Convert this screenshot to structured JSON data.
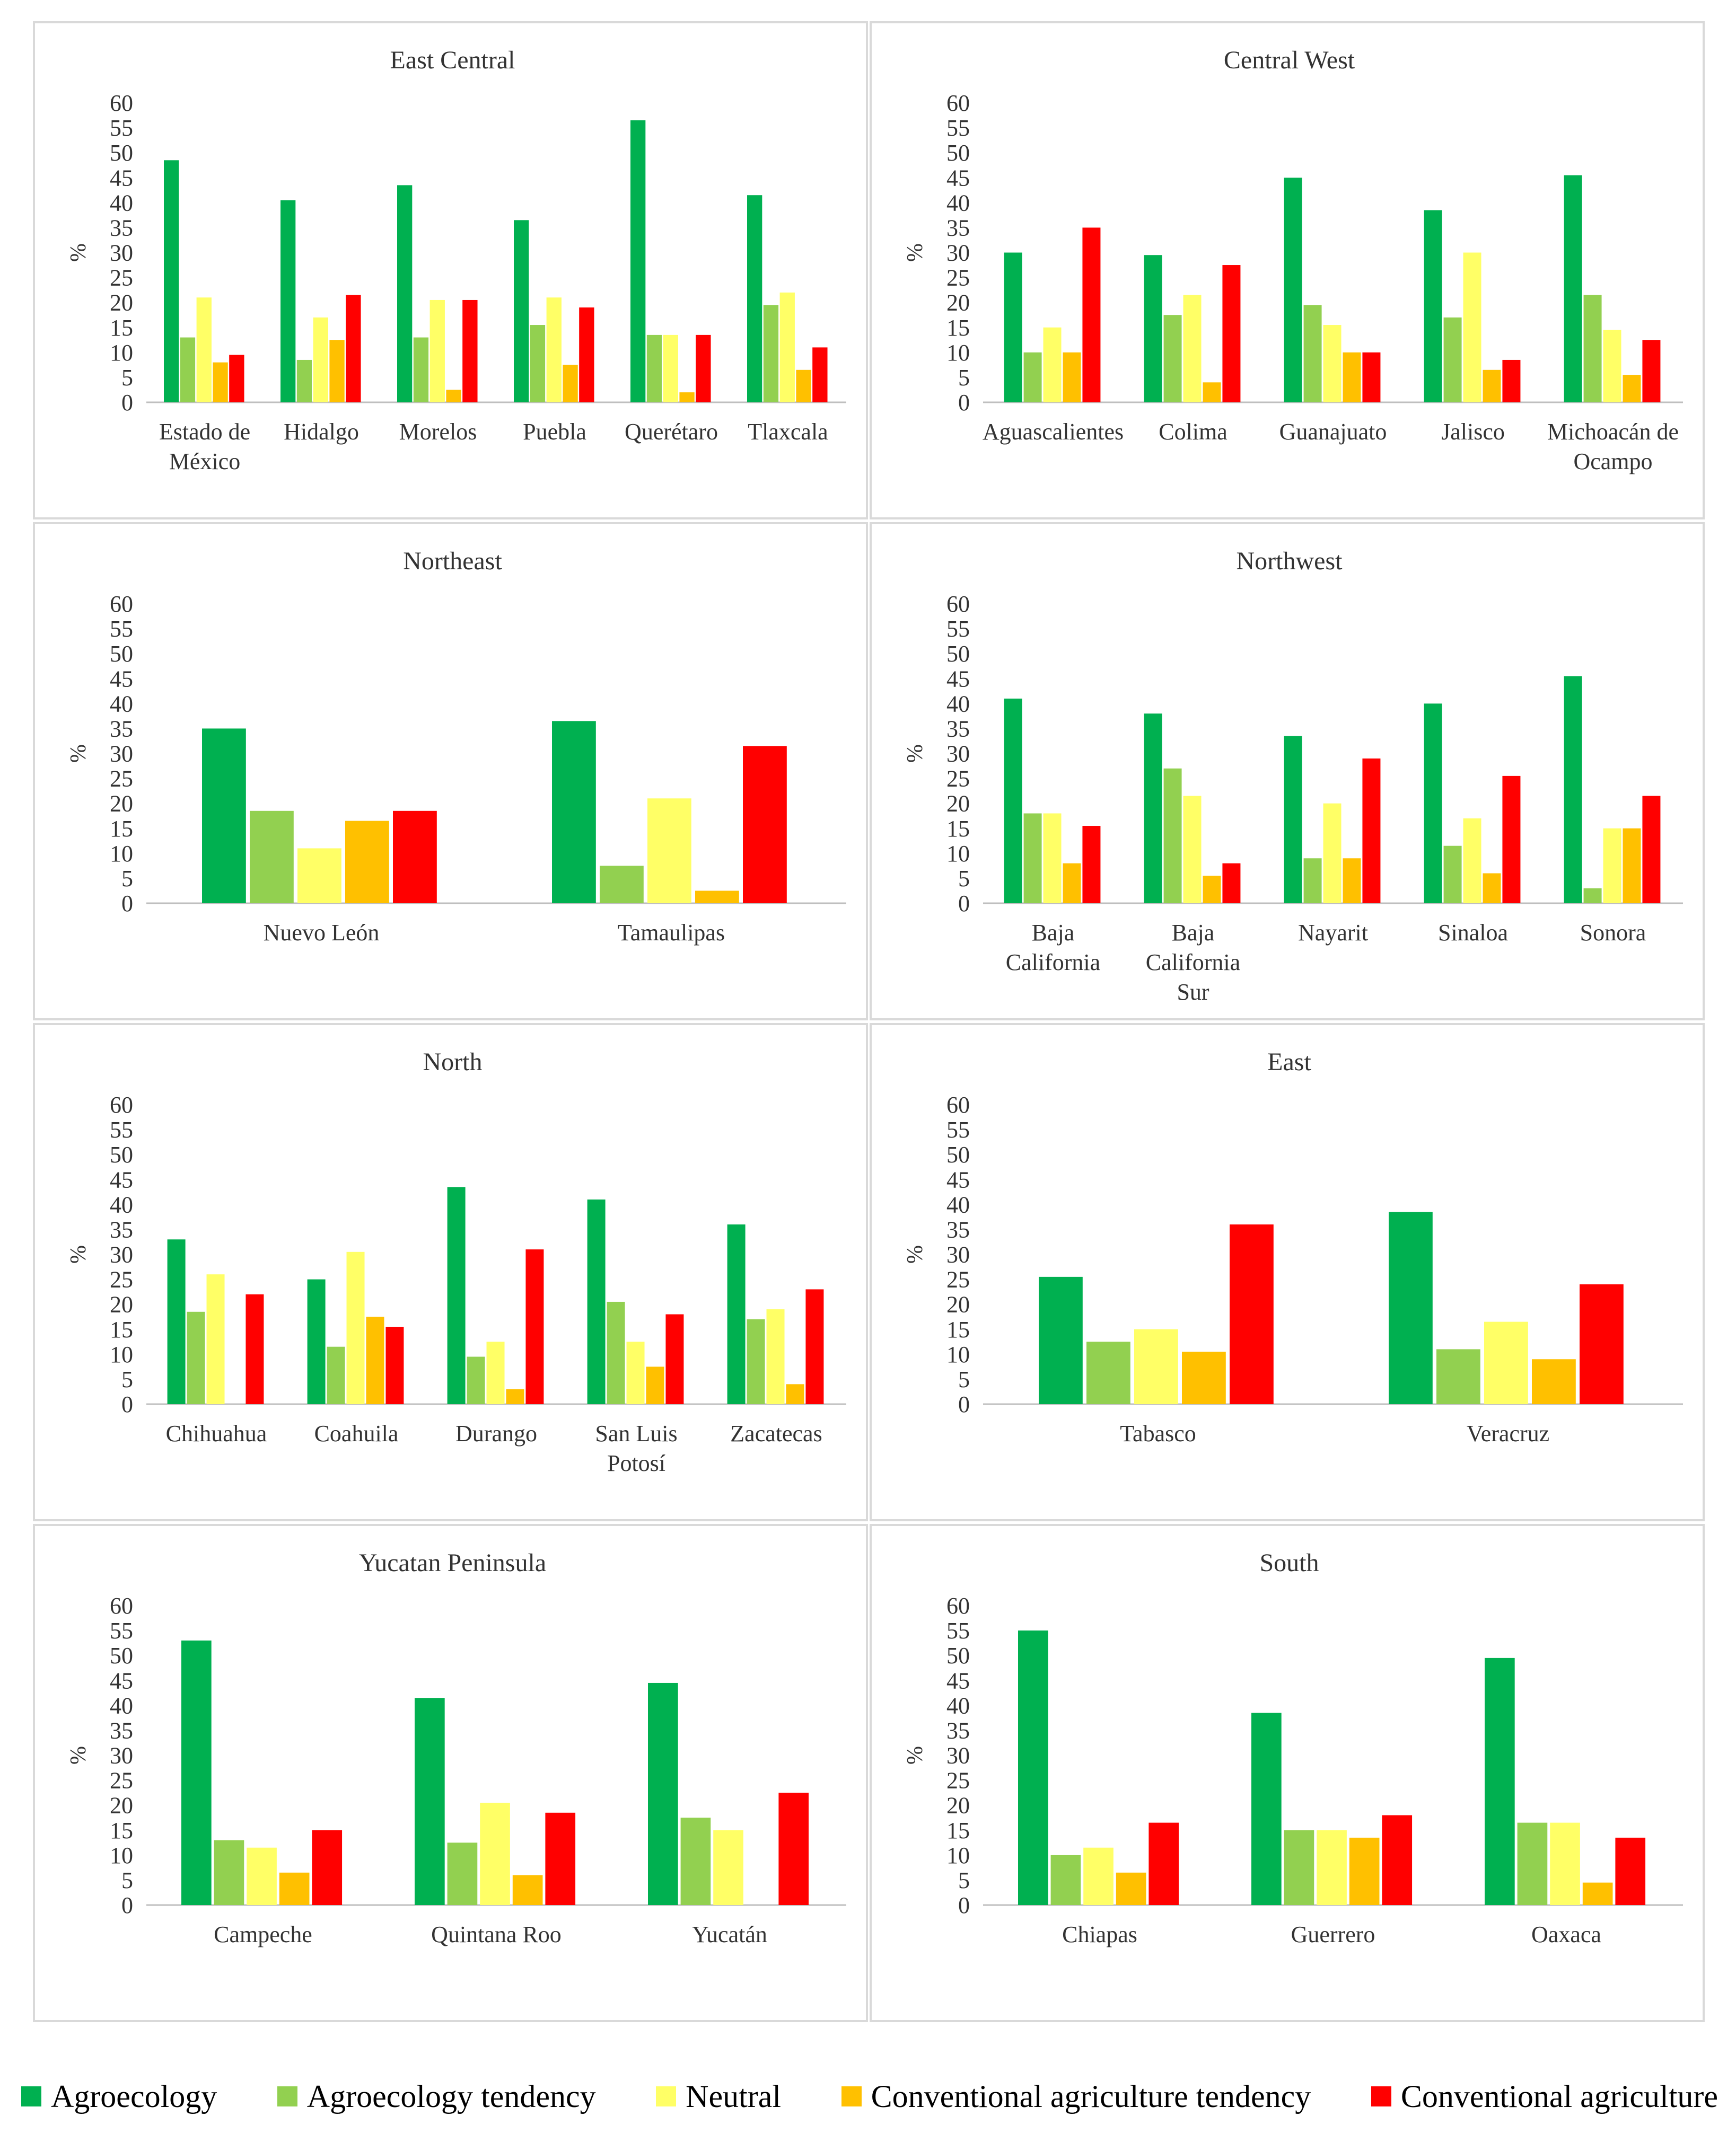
{
  "legend": [
    {
      "label": "Agroecology",
      "color": "#00b050"
    },
    {
      "label": "Agroecology tendency",
      "color": "#92d050"
    },
    {
      "label": "Neutral",
      "color": "#ffff66"
    },
    {
      "label": "Conventional agriculture tendency",
      "color": "#ffc000"
    },
    {
      "label": "Conventional agriculture",
      "color": "#ff0000"
    }
  ],
  "chart_data": [
    {
      "type": "bar",
      "title": "East Central",
      "ylabel": "%",
      "ylim": [
        0,
        60
      ],
      "yticks": [
        "60",
        "55",
        "50",
        "45",
        "40",
        "35",
        "30",
        "25",
        "20",
        "15",
        "10",
        "5",
        "0"
      ],
      "categories": [
        "Estado de México",
        "Hidalgo",
        "Morelos",
        "Puebla",
        "Querétaro",
        "Tlaxcala"
      ],
      "category_lines": [
        [
          "Estado de",
          "México"
        ],
        [
          "Hidalgo"
        ],
        [
          "Morelos"
        ],
        [
          "Puebla"
        ],
        [
          "Querétaro"
        ],
        [
          "Tlaxcala"
        ]
      ],
      "series": [
        {
          "name": "Agroecology",
          "values": [
            48.5,
            40.5,
            43.5,
            36.5,
            56.5,
            41.5
          ]
        },
        {
          "name": "Agroecology tendency",
          "values": [
            13,
            8.5,
            13,
            15.5,
            13.5,
            19.5
          ]
        },
        {
          "name": "Neutral",
          "values": [
            21,
            17,
            20.5,
            21,
            13.5,
            22
          ]
        },
        {
          "name": "Conventional agriculture tendency",
          "values": [
            8,
            12.5,
            2.5,
            7.5,
            2,
            6.5
          ]
        },
        {
          "name": "Conventional agriculture",
          "values": [
            9.5,
            21.5,
            20.5,
            19,
            13.5,
            11
          ]
        }
      ]
    },
    {
      "type": "bar",
      "title": "Central West",
      "ylabel": "%",
      "ylim": [
        0,
        60
      ],
      "yticks": [
        "60",
        "55",
        "50",
        "45",
        "40",
        "35",
        "30",
        "25",
        "20",
        "15",
        "10",
        "5",
        "0"
      ],
      "categories": [
        "Aguascalientes",
        "Colima",
        "Guanajuato",
        "Jalisco",
        "Michoacán de Ocampo"
      ],
      "category_lines": [
        [
          "Aguascalientes"
        ],
        [
          "Colima"
        ],
        [
          "Guanajuato"
        ],
        [
          "Jalisco"
        ],
        [
          "Michoacán de",
          "Ocampo"
        ]
      ],
      "series": [
        {
          "name": "Agroecology",
          "values": [
            30,
            29.5,
            45,
            38.5,
            45.5
          ]
        },
        {
          "name": "Agroecology tendency",
          "values": [
            10,
            17.5,
            19.5,
            17,
            21.5
          ]
        },
        {
          "name": "Neutral",
          "values": [
            15,
            21.5,
            15.5,
            30,
            14.5
          ]
        },
        {
          "name": "Conventional agriculture tendency",
          "values": [
            10,
            4,
            10,
            6.5,
            5.5
          ]
        },
        {
          "name": "Conventional agriculture",
          "values": [
            35,
            27.5,
            10,
            8.5,
            12.5
          ]
        }
      ]
    },
    {
      "type": "bar",
      "title": "Northeast",
      "ylabel": "%",
      "ylim": [
        0,
        60
      ],
      "yticks": [
        "60",
        "55",
        "50",
        "45",
        "40",
        "35",
        "30",
        "25",
        "20",
        "15",
        "10",
        "5",
        "0"
      ],
      "categories": [
        "Nuevo León",
        "Tamaulipas"
      ],
      "category_lines": [
        [
          "Nuevo León"
        ],
        [
          "Tamaulipas"
        ]
      ],
      "series": [
        {
          "name": "Agroecology",
          "values": [
            35,
            36.5
          ]
        },
        {
          "name": "Agroecology tendency",
          "values": [
            18.5,
            7.5
          ]
        },
        {
          "name": "Neutral",
          "values": [
            11,
            21
          ]
        },
        {
          "name": "Conventional agriculture tendency",
          "values": [
            16.5,
            2.5
          ]
        },
        {
          "name": "Conventional agriculture",
          "values": [
            18.5,
            31.5
          ]
        }
      ]
    },
    {
      "type": "bar",
      "title": "Northwest",
      "ylabel": "%",
      "ylim": [
        0,
        60
      ],
      "yticks": [
        "60",
        "55",
        "50",
        "45",
        "40",
        "35",
        "30",
        "25",
        "20",
        "15",
        "10",
        "5",
        "0"
      ],
      "categories": [
        "Baja California",
        "Baja California Sur",
        "Nayarit",
        "Sinaloa",
        "Sonora"
      ],
      "category_lines": [
        [
          "Baja",
          "California"
        ],
        [
          "Baja",
          "California",
          "Sur"
        ],
        [
          "Nayarit"
        ],
        [
          "Sinaloa"
        ],
        [
          "Sonora"
        ]
      ],
      "series": [
        {
          "name": "Agroecology",
          "values": [
            41,
            38,
            33.5,
            40,
            45.5
          ]
        },
        {
          "name": "Agroecology tendency",
          "values": [
            18,
            27,
            9,
            11.5,
            3
          ]
        },
        {
          "name": "Neutral",
          "values": [
            18,
            21.5,
            20,
            17,
            15
          ]
        },
        {
          "name": "Conventional agriculture tendency",
          "values": [
            8,
            5.5,
            9,
            6,
            15
          ]
        },
        {
          "name": "Conventional agriculture",
          "values": [
            15.5,
            8,
            29,
            25.5,
            21.5
          ]
        }
      ]
    },
    {
      "type": "bar",
      "title": "North",
      "ylabel": "%",
      "ylim": [
        0,
        60
      ],
      "yticks": [
        "60",
        "55",
        "50",
        "45",
        "40",
        "35",
        "30",
        "25",
        "20",
        "15",
        "10",
        "5",
        "0"
      ],
      "categories": [
        "Chihuahua",
        "Coahuila",
        "Durango",
        "San Luis Potosí",
        "Zacatecas"
      ],
      "category_lines": [
        [
          "Chihuahua"
        ],
        [
          "Coahuila"
        ],
        [
          "Durango"
        ],
        [
          "San Luis",
          "Potosí"
        ],
        [
          "Zacatecas"
        ]
      ],
      "series": [
        {
          "name": "Agroecology",
          "values": [
            33,
            25,
            43.5,
            41,
            36
          ]
        },
        {
          "name": "Agroecology tendency",
          "values": [
            18.5,
            11.5,
            9.5,
            20.5,
            17
          ]
        },
        {
          "name": "Neutral",
          "values": [
            26,
            30.5,
            12.5,
            12.5,
            19
          ]
        },
        {
          "name": "Conventional agriculture tendency",
          "values": [
            0,
            17.5,
            3,
            7.5,
            4
          ]
        },
        {
          "name": "Conventional agriculture",
          "values": [
            22,
            15.5,
            31,
            18,
            23
          ]
        }
      ]
    },
    {
      "type": "bar",
      "title": "East",
      "ylabel": "%",
      "ylim": [
        0,
        60
      ],
      "yticks": [
        "60",
        "55",
        "50",
        "45",
        "40",
        "35",
        "30",
        "25",
        "20",
        "15",
        "10",
        "5",
        "0"
      ],
      "categories": [
        "Tabasco",
        "Veracruz"
      ],
      "category_lines": [
        [
          "Tabasco"
        ],
        [
          "Veracruz"
        ]
      ],
      "series": [
        {
          "name": "Agroecology",
          "values": [
            25.5,
            38.5
          ]
        },
        {
          "name": "Agroecology tendency",
          "values": [
            12.5,
            11
          ]
        },
        {
          "name": "Neutral",
          "values": [
            15,
            16.5
          ]
        },
        {
          "name": "Conventional agriculture tendency",
          "values": [
            10.5,
            9
          ]
        },
        {
          "name": "Conventional agriculture",
          "values": [
            36,
            24
          ]
        }
      ]
    },
    {
      "type": "bar",
      "title": "Yucatan Peninsula",
      "ylabel": "%",
      "ylim": [
        0,
        60
      ],
      "yticks": [
        "60",
        "55",
        "50",
        "45",
        "40",
        "35",
        "30",
        "25",
        "20",
        "15",
        "10",
        "5",
        "0"
      ],
      "categories": [
        "Campeche",
        "Quintana Roo",
        "Yucatán"
      ],
      "category_lines": [
        [
          "Campeche"
        ],
        [
          "Quintana Roo"
        ],
        [
          "Yucatán"
        ]
      ],
      "series": [
        {
          "name": "Agroecology",
          "values": [
            53,
            41.5,
            44.5
          ]
        },
        {
          "name": "Agroecology tendency",
          "values": [
            13,
            12.5,
            17.5
          ]
        },
        {
          "name": "Neutral",
          "values": [
            11.5,
            20.5,
            15
          ]
        },
        {
          "name": "Conventional agriculture tendency",
          "values": [
            6.5,
            6,
            0
          ]
        },
        {
          "name": "Conventional agriculture",
          "values": [
            15,
            18.5,
            22.5
          ]
        }
      ]
    },
    {
      "type": "bar",
      "title": "South",
      "ylabel": "%",
      "ylim": [
        0,
        60
      ],
      "yticks": [
        "60",
        "55",
        "50",
        "45",
        "40",
        "35",
        "30",
        "25",
        "20",
        "15",
        "10",
        "5",
        "0"
      ],
      "categories": [
        "Chiapas",
        "Guerrero",
        "Oaxaca"
      ],
      "category_lines": [
        [
          "Chiapas"
        ],
        [
          "Guerrero"
        ],
        [
          "Oaxaca"
        ]
      ],
      "series": [
        {
          "name": "Agroecology",
          "values": [
            55,
            38.5,
            49.5
          ]
        },
        {
          "name": "Agroecology tendency",
          "values": [
            10,
            15,
            16.5
          ]
        },
        {
          "name": "Neutral",
          "values": [
            11.5,
            15,
            16.5
          ]
        },
        {
          "name": "Conventional agriculture tendency",
          "values": [
            6.5,
            13.5,
            4.5
          ]
        },
        {
          "name": "Conventional agriculture",
          "values": [
            16.5,
            18,
            13.5
          ]
        }
      ]
    }
  ]
}
